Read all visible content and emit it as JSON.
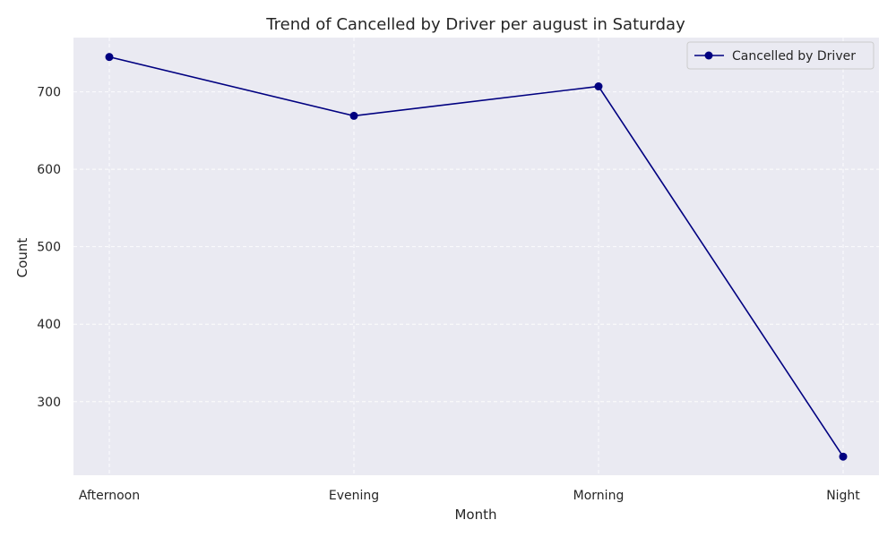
{
  "chart_data": {
    "type": "line",
    "title": "Trend of Cancelled by Driver per august in Saturday",
    "xlabel": "Month",
    "ylabel": "Count",
    "categories": [
      "Afternoon",
      "Evening",
      "Morning",
      "Night"
    ],
    "series": [
      {
        "name": "Cancelled by Driver",
        "values": [
          745,
          669,
          707,
          229
        ],
        "color": "#000080"
      }
    ],
    "ylim": [
      205,
      770
    ],
    "yticks": [
      300,
      400,
      500,
      600,
      700
    ],
    "grid": true,
    "legend_position": "top-right",
    "background_color": "#eaeaf2",
    "grid_color": "#ffffff"
  }
}
